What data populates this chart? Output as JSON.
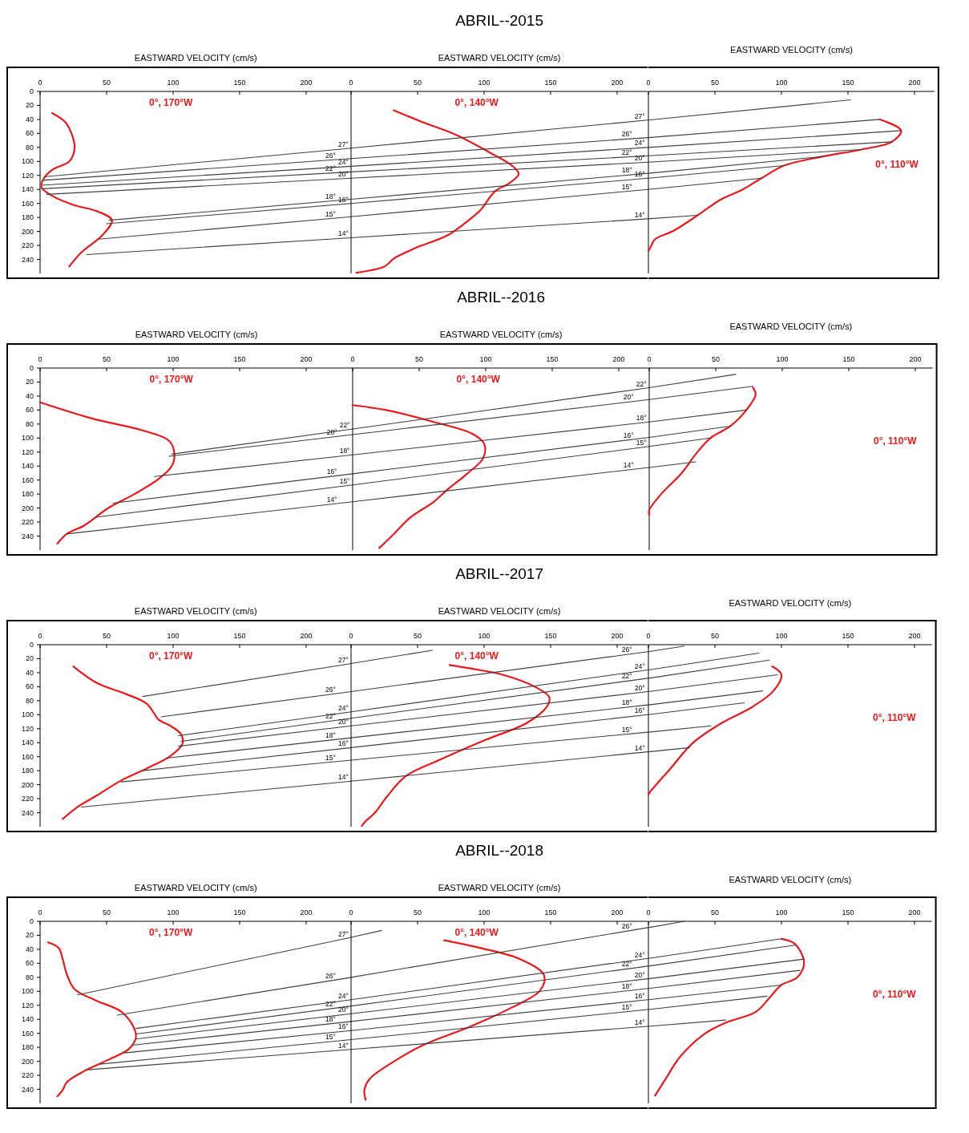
{
  "chart_data": [
    {
      "type": "line",
      "xlabel": "EASTWARD VELOCITY (cm/s)",
      "xlim": [
        0,
        234
      ],
      "xticks": [
        0,
        50,
        100,
        150,
        200
      ],
      "ylim": [
        260,
        0
      ],
      "yticks": [
        0,
        20,
        40,
        60,
        80,
        100,
        120,
        140,
        160,
        180,
        200,
        220,
        240
      ],
      "series": [
        {
          "name": "0°, 170°W",
          "color": "#e8191b",
          "x": [
            9,
            19,
            24,
            26,
            22,
            9,
            2,
            1,
            9,
            25,
            44,
            54,
            47,
            31,
            22
          ],
          "values": [
            31,
            44,
            62,
            81,
            100,
            112,
            127,
            137,
            149,
            162,
            172,
            184,
            205,
            230,
            250
          ]
        },
        {
          "name": "27°",
          "color": "#404040",
          "x": [
            3,
            234
          ],
          "values": [
            122,
            81
          ]
        },
        {
          "name": "26°",
          "color": "#404040",
          "x": [
            2,
            234
          ],
          "values": [
            127,
            96
          ]
        },
        {
          "name": "24°",
          "color": "#404040",
          "x": [
            1,
            234
          ],
          "values": [
            134,
            107
          ]
        },
        {
          "name": "22°",
          "color": "#404040",
          "x": [
            2,
            234
          ],
          "values": [
            139,
            115
          ]
        },
        {
          "name": "20°",
          "color": "#404040",
          "x": [
            5,
            234
          ],
          "values": [
            147,
            124
          ]
        },
        {
          "name": "18°",
          "color": "#404040",
          "x": [
            52,
            234
          ],
          "values": [
            184,
            154
          ]
        },
        {
          "name": "16°",
          "color": "#404040",
          "x": [
            50,
            234
          ],
          "values": [
            189,
            160
          ]
        },
        {
          "name": "15°",
          "color": "#404040",
          "x": [
            44,
            234
          ],
          "values": [
            211,
            179
          ]
        },
        {
          "name": "14°",
          "color": "#404040",
          "x": [
            35,
            234
          ],
          "values": [
            233,
            209
          ]
        }
      ]
    },
    {
      "type": "line",
      "title": "ABRIL--2015",
      "xlabel": "EASTWARD VELOCITY (cm/s)",
      "xlim": [
        0,
        223
      ],
      "xticks": [
        0,
        50,
        100,
        150,
        200
      ],
      "ylim": [
        260,
        0
      ],
      "yticks": [
        0,
        20,
        40,
        60,
        80,
        100,
        120,
        140,
        160,
        180,
        200,
        220,
        240
      ],
      "tick_labels": "x",
      "series": [
        {
          "name": "0°, 140°W",
          "color": "#e8191b",
          "x": [
            32,
            54,
            79,
            104,
            121,
            126,
            119,
            108,
            98,
            91,
            73,
            48,
            32,
            28,
            24,
            4
          ],
          "values": [
            27,
            44,
            62,
            87,
            106,
            118,
            131,
            143,
            168,
            180,
            205,
            224,
            239,
            246,
            251,
            259
          ]
        },
        {
          "name": "27°",
          "color": "#404040",
          "x": [
            0,
            223
          ],
          "values": [
            81,
            41
          ]
        },
        {
          "name": "26°",
          "color": "#404040",
          "x": [
            0,
            223
          ],
          "values": [
            96,
            66
          ]
        },
        {
          "name": "24°",
          "color": "#404040",
          "x": [
            0,
            223
          ],
          "values": [
            107,
            80
          ]
        },
        {
          "name": "22°",
          "color": "#404040",
          "x": [
            0,
            223
          ],
          "values": [
            115,
            92
          ]
        },
        {
          "name": "20°",
          "color": "#404040",
          "x": [
            0,
            223
          ],
          "values": [
            124,
            101
          ]
        },
        {
          "name": "18°",
          "color": "#404040",
          "x": [
            0,
            223
          ],
          "values": [
            154,
            117
          ]
        },
        {
          "name": "16°",
          "color": "#404040",
          "x": [
            0,
            223
          ],
          "values": [
            160,
            124
          ]
        },
        {
          "name": "15°",
          "color": "#404040",
          "x": [
            0,
            223
          ],
          "values": [
            179,
            140
          ]
        },
        {
          "name": "14°",
          "color": "#404040",
          "x": [
            0,
            223
          ],
          "values": [
            209,
            182
          ]
        }
      ]
    },
    {
      "type": "line",
      "xlabel": "EASTWARD VELOCITY (cm/s)",
      "xlim": [
        0,
        215
      ],
      "xticks": [
        0,
        50,
        100,
        150,
        200
      ],
      "ylim": [
        260,
        0
      ],
      "yticks": [
        0,
        20,
        40,
        60,
        80,
        100,
        120,
        140,
        160,
        180,
        200,
        220,
        240
      ],
      "tick_labels": "x",
      "series": [
        {
          "name": "0°, 110°W",
          "color": "#e8191b",
          "x": [
            174,
            190,
            183,
            160,
            131,
            102,
            85,
            71,
            54,
            37,
            19,
            5,
            2,
            0
          ],
          "values": [
            40,
            56,
            72,
            83,
            93,
            106,
            124,
            140,
            155,
            177,
            199,
            211,
            221,
            228
          ]
        },
        {
          "color": "#404040",
          "x": [
            0,
            152
          ],
          "values": [
            41,
            12
          ]
        },
        {
          "color": "#404040",
          "x": [
            0,
            174
          ],
          "values": [
            66,
            40
          ]
        },
        {
          "color": "#404040",
          "x": [
            0,
            190
          ],
          "values": [
            80,
            56
          ]
        },
        {
          "color": "#404040",
          "x": [
            0,
            183
          ],
          "values": [
            92,
            72
          ]
        },
        {
          "color": "#404040",
          "x": [
            0,
            160
          ],
          "values": [
            101,
            83
          ]
        },
        {
          "color": "#404040",
          "x": [
            0,
            131
          ],
          "values": [
            117,
            93
          ]
        },
        {
          "color": "#404040",
          "x": [
            0,
            102
          ],
          "values": [
            124,
            106
          ]
        },
        {
          "color": "#404040",
          "x": [
            0,
            85
          ],
          "values": [
            140,
            124
          ]
        },
        {
          "color": "#404040",
          "x": [
            0,
            37
          ],
          "values": [
            182,
            177
          ]
        }
      ]
    },
    {
      "type": "line",
      "xlabel": "EASTWARD VELOCITY (cm/s)",
      "xlim": [
        0,
        235
      ],
      "xticks": [
        0,
        50,
        100,
        150,
        200
      ],
      "ylim": [
        260,
        0
      ],
      "yticks": [
        0,
        20,
        40,
        60,
        80,
        100,
        120,
        140,
        160,
        180,
        200,
        220,
        240
      ],
      "series": [
        {
          "name": "0°, 170°W",
          "color": "#e8191b",
          "x": [
            0,
            39,
            77,
            97,
            101,
            99,
            90,
            71,
            52,
            33,
            20,
            13
          ],
          "values": [
            49,
            72,
            89,
            104,
            123,
            140,
            157,
            180,
            199,
            225,
            237,
            251
          ]
        },
        {
          "name": "22°",
          "color": "#404040",
          "x": [
            99,
            235
          ],
          "values": [
            123,
            87
          ]
        },
        {
          "name": "20°",
          "color": "#404040",
          "x": [
            97,
            235
          ],
          "values": [
            126,
            95
          ]
        },
        {
          "name": "18°",
          "color": "#404040",
          "x": [
            86,
            235
          ],
          "values": [
            155,
            124
          ]
        },
        {
          "name": "16°",
          "color": "#404040",
          "x": [
            55,
            235
          ],
          "values": [
            193,
            151
          ]
        },
        {
          "name": "15°",
          "color": "#404040",
          "x": [
            42,
            235
          ],
          "values": [
            213,
            167
          ]
        },
        {
          "name": "14°",
          "color": "#404040",
          "x": [
            20,
            235
          ],
          "values": [
            237,
            191
          ]
        }
      ]
    },
    {
      "type": "line",
      "title": "ABRIL--2016",
      "xlabel": "EASTWARD VELOCITY (cm/s)",
      "xlim": [
        0,
        223
      ],
      "xticks": [
        0,
        50,
        100,
        150,
        200
      ],
      "ylim": [
        260,
        0
      ],
      "yticks": [
        0,
        20,
        40,
        60,
        80,
        100,
        120,
        140,
        160,
        180,
        200,
        220,
        240
      ],
      "tick_labels": "x",
      "series": [
        {
          "name": "0°, 140°W",
          "color": "#e8191b",
          "x": [
            0,
            25,
            61,
            90,
            99,
            98,
            86,
            71,
            61,
            43,
            31,
            20
          ],
          "values": [
            53,
            60,
            77,
            94,
            109,
            129,
            151,
            174,
            191,
            214,
            237,
            257
          ]
        },
        {
          "name": "22°",
          "color": "#404040",
          "x": [
            0,
            223
          ],
          "values": [
            87,
            28
          ]
        },
        {
          "name": "20°",
          "color": "#404040",
          "x": [
            0,
            223
          ],
          "values": [
            95,
            45
          ]
        },
        {
          "name": "18°",
          "color": "#404040",
          "x": [
            0,
            223
          ],
          "values": [
            124,
            77
          ]
        },
        {
          "name": "16°",
          "color": "#404040",
          "x": [
            0,
            223
          ],
          "values": [
            151,
            99
          ]
        },
        {
          "name": "15°",
          "color": "#404040",
          "x": [
            0,
            223
          ],
          "values": [
            167,
            112
          ]
        },
        {
          "name": "14°",
          "color": "#404040",
          "x": [
            0,
            223
          ],
          "values": [
            191,
            142
          ]
        }
      ]
    },
    {
      "type": "line",
      "xlabel": "EASTWARD VELOCITY (cm/s)",
      "xlim": [
        0,
        213
      ],
      "xticks": [
        0,
        50,
        100,
        150,
        200
      ],
      "ylim": [
        260,
        0
      ],
      "yticks": [
        0,
        20,
        40,
        60,
        80,
        100,
        120,
        140,
        160,
        180,
        200,
        220,
        240
      ],
      "tick_labels": "x",
      "series": [
        {
          "name": "0°, 110°W",
          "color": "#e8191b",
          "x": [
            78,
            80,
            73,
            61,
            46,
            35,
            24,
            9,
            0,
            0
          ],
          "values": [
            28,
            38,
            60,
            83,
            100,
            123,
            151,
            180,
            203,
            210
          ]
        },
        {
          "color": "#404040",
          "x": [
            0,
            65
          ],
          "values": [
            28,
            9
          ]
        },
        {
          "color": "#404040",
          "x": [
            0,
            78
          ],
          "values": [
            45,
            26
          ]
        },
        {
          "color": "#404040",
          "x": [
            0,
            73
          ],
          "values": [
            77,
            60
          ]
        },
        {
          "color": "#404040",
          "x": [
            0,
            61
          ],
          "values": [
            99,
            83
          ]
        },
        {
          "color": "#404040",
          "x": [
            0,
            46
          ],
          "values": [
            112,
            100
          ]
        },
        {
          "color": "#404040",
          "x": [
            0,
            35
          ],
          "values": [
            142,
            134
          ]
        }
      ]
    },
    {
      "type": "line",
      "xlabel": "EASTWARD VELOCITY (cm/s)",
      "xlim": [
        0,
        234
      ],
      "xticks": [
        0,
        50,
        100,
        150,
        200
      ],
      "ylim": [
        260,
        0
      ],
      "yticks": [
        0,
        20,
        40,
        60,
        80,
        100,
        120,
        140,
        160,
        180,
        200,
        220,
        240
      ],
      "series": [
        {
          "name": "0°, 170°W",
          "color": "#e8191b",
          "x": [
            25,
            43,
            64,
            80,
            86,
            89,
            98,
            106,
            107,
            98,
            80,
            61,
            43,
            28,
            17
          ],
          "values": [
            31,
            55,
            70,
            84,
            99,
            107,
            116,
            128,
            142,
            159,
            177,
            194,
            215,
            232,
            249
          ]
        },
        {
          "name": "27°",
          "color": "#404040",
          "x": [
            77,
            234
          ],
          "values": [
            74,
            27
          ]
        },
        {
          "name": "26°",
          "color": "#404040",
          "x": [
            91,
            234
          ],
          "values": [
            103,
            67
          ]
        },
        {
          "name": "24°",
          "color": "#404040",
          "x": [
            104,
            234
          ],
          "values": [
            130,
            96
          ]
        },
        {
          "name": "22°",
          "color": "#404040",
          "x": [
            106,
            234
          ],
          "values": [
            138,
            105
          ]
        },
        {
          "name": "20°",
          "color": "#404040",
          "x": [
            104,
            234
          ],
          "values": [
            145,
            116
          ]
        },
        {
          "name": "18°",
          "color": "#404040",
          "x": [
            95,
            234
          ],
          "values": [
            162,
            133
          ]
        },
        {
          "name": "16°",
          "color": "#404040",
          "x": [
            77,
            234
          ],
          "values": [
            180,
            147
          ]
        },
        {
          "name": "15°",
          "color": "#404040",
          "x": [
            61,
            234
          ],
          "values": [
            196,
            165
          ]
        },
        {
          "name": "14°",
          "color": "#404040",
          "x": [
            31,
            234
          ],
          "values": [
            232,
            195
          ]
        }
      ]
    },
    {
      "type": "line",
      "title": "ABRIL--2017",
      "xlabel": "EASTWARD VELOCITY (cm/s)",
      "xlim": [
        0,
        223
      ],
      "xticks": [
        0,
        50,
        100,
        150,
        200
      ],
      "ylim": [
        260,
        0
      ],
      "yticks": [
        0,
        20,
        40,
        60,
        80,
        100,
        120,
        140,
        160,
        180,
        200,
        220,
        240
      ],
      "tick_labels": "x",
      "series": [
        {
          "name": "0°, 140°W",
          "color": "#e8191b",
          "x": [
            74,
            90,
            114,
            138,
            149,
            147,
            132,
            101,
            66,
            41,
            27,
            18,
            11,
            8
          ],
          "values": [
            29,
            34,
            43,
            60,
            75,
            89,
            112,
            136,
            165,
            188,
            217,
            240,
            252,
            259
          ]
        },
        {
          "color": "#404040",
          "x": [
            0,
            61
          ],
          "values": [
            27,
            8
          ]
        },
        {
          "name": "26°",
          "color": "#404040",
          "x": [
            0,
            223
          ],
          "values": [
            67,
            10
          ]
        },
        {
          "name": "24°",
          "color": "#404040",
          "x": [
            0,
            223
          ],
          "values": [
            96,
            36
          ]
        },
        {
          "name": "22°",
          "color": "#404040",
          "x": [
            0,
            223
          ],
          "values": [
            105,
            48
          ]
        },
        {
          "name": "20°",
          "color": "#404040",
          "x": [
            0,
            223
          ],
          "values": [
            116,
            67
          ]
        },
        {
          "name": "18°",
          "color": "#404040",
          "x": [
            0,
            223
          ],
          "values": [
            133,
            86
          ]
        },
        {
          "name": "16°",
          "color": "#404040",
          "x": [
            0,
            223
          ],
          "values": [
            147,
            100
          ]
        },
        {
          "name": "15°",
          "color": "#404040",
          "x": [
            0,
            223
          ],
          "values": [
            165,
            125
          ]
        },
        {
          "name": "14°",
          "color": "#404040",
          "x": [
            0,
            223
          ],
          "values": [
            195,
            153
          ]
        }
      ]
    },
    {
      "type": "line",
      "xlabel": "EASTWARD VELOCITY (cm/s)",
      "xlim": [
        0,
        213
      ],
      "xticks": [
        0,
        50,
        100,
        150,
        200
      ],
      "ylim": [
        260,
        0
      ],
      "yticks": [
        0,
        20,
        40,
        60,
        80,
        100,
        120,
        140,
        160,
        180,
        200,
        220,
        240
      ],
      "tick_labels": "x",
      "series": [
        {
          "name": "0°, 110°W",
          "color": "#e8191b",
          "x": [
            93,
            100,
            94,
            78,
            55,
            33,
            17,
            1,
            0
          ],
          "values": [
            31,
            43,
            66,
            89,
            112,
            141,
            176,
            211,
            214
          ]
        },
        {
          "color": "#404040",
          "x": [
            0,
            27
          ],
          "values": [
            10,
            2
          ]
        },
        {
          "color": "#404040",
          "x": [
            0,
            83
          ],
          "values": [
            36,
            12
          ]
        },
        {
          "color": "#404040",
          "x": [
            0,
            91
          ],
          "values": [
            48,
            22
          ]
        },
        {
          "color": "#404040",
          "x": [
            0,
            97
          ],
          "values": [
            67,
            43
          ]
        },
        {
          "color": "#404040",
          "x": [
            0,
            86
          ],
          "values": [
            86,
            66
          ]
        },
        {
          "color": "#404040",
          "x": [
            0,
            72
          ],
          "values": [
            100,
            83
          ]
        },
        {
          "color": "#404040",
          "x": [
            0,
            47
          ],
          "values": [
            125,
            116
          ]
        },
        {
          "color": "#404040",
          "x": [
            0,
            31
          ],
          "values": [
            153,
            147
          ]
        }
      ]
    },
    {
      "type": "line",
      "xlabel": "EASTWARD VELOCITY (cm/s)",
      "xlim": [
        0,
        234
      ],
      "xticks": [
        0,
        50,
        100,
        150,
        200
      ],
      "ylim": [
        260,
        0
      ],
      "yticks": [
        0,
        20,
        40,
        60,
        80,
        100,
        120,
        140,
        160,
        180,
        200,
        220,
        240
      ],
      "series": [
        {
          "name": "0°, 170°W",
          "color": "#e8191b",
          "x": [
            6,
            14,
            17,
            20,
            26,
            42,
            61,
            70,
            72,
            67,
            51,
            33,
            20,
            17,
            13
          ],
          "values": [
            30,
            38,
            54,
            75,
            97,
            113,
            129,
            150,
            166,
            182,
            198,
            214,
            230,
            241,
            250
          ]
        },
        {
          "name": "27°",
          "color": "#404040",
          "x": [
            28,
            234
          ],
          "values": [
            105,
            23
          ]
        },
        {
          "name": "26°",
          "color": "#404040",
          "x": [
            58,
            234
          ],
          "values": [
            134,
            80
          ]
        },
        {
          "name": "24°",
          "color": "#404040",
          "x": [
            72,
            234
          ],
          "values": [
            153,
            112
          ]
        },
        {
          "name": "22°",
          "color": "#404040",
          "x": [
            72,
            234
          ],
          "values": [
            161,
            121
          ]
        },
        {
          "name": "20°",
          "color": "#404040",
          "x": [
            72,
            234
          ],
          "values": [
            168,
            132
          ]
        },
        {
          "name": "18°",
          "color": "#404040",
          "x": [
            69,
            234
          ],
          "values": [
            177,
            143
          ]
        },
        {
          "name": "16°",
          "color": "#404040",
          "x": [
            63,
            234
          ],
          "values": [
            188,
            156
          ]
        },
        {
          "name": "15°",
          "color": "#404040",
          "x": [
            45,
            234
          ],
          "values": [
            204,
            169
          ]
        },
        {
          "name": "14°",
          "color": "#404040",
          "x": [
            36,
            234
          ],
          "values": [
            212,
            183
          ]
        }
      ]
    },
    {
      "type": "line",
      "title": "ABRIL--2018",
      "xlabel": "EASTWARD VELOCITY (cm/s)",
      "xlim": [
        0,
        223
      ],
      "xticks": [
        0,
        50,
        100,
        150,
        200
      ],
      "ylim": [
        260,
        0
      ],
      "yticks": [
        0,
        20,
        40,
        60,
        80,
        100,
        120,
        140,
        160,
        180,
        200,
        220,
        240
      ],
      "tick_labels": "x",
      "series": [
        {
          "name": "0°, 140°W",
          "color": "#e8191b",
          "x": [
            70,
            97,
            127,
            145,
            142,
            121,
            90,
            54,
            29,
            14,
            10,
            11
          ],
          "values": [
            27,
            38,
            54,
            77,
            99,
            123,
            150,
            177,
            204,
            225,
            241,
            255
          ]
        },
        {
          "color": "#404040",
          "x": [
            0,
            23
          ],
          "values": [
            23,
            13
          ]
        },
        {
          "name": "26°",
          "color": "#404040",
          "x": [
            0,
            223
          ],
          "values": [
            80,
            9
          ]
        },
        {
          "name": "24°",
          "color": "#404040",
          "x": [
            0,
            223
          ],
          "values": [
            112,
            53
          ]
        },
        {
          "name": "22°",
          "color": "#404040",
          "x": [
            0,
            223
          ],
          "values": [
            121,
            64
          ]
        },
        {
          "name": "20°",
          "color": "#404040",
          "x": [
            0,
            223
          ],
          "values": [
            132,
            82
          ]
        },
        {
          "name": "18°",
          "color": "#404040",
          "x": [
            0,
            223
          ],
          "values": [
            143,
            96
          ]
        },
        {
          "name": "16°",
          "color": "#404040",
          "x": [
            0,
            223
          ],
          "values": [
            156,
            112
          ]
        },
        {
          "name": "15°",
          "color": "#404040",
          "x": [
            0,
            223
          ],
          "values": [
            169,
            126
          ]
        },
        {
          "name": "14°",
          "color": "#404040",
          "x": [
            0,
            223
          ],
          "values": [
            183,
            150
          ]
        }
      ]
    },
    {
      "type": "line",
      "xlabel": "EASTWARD VELOCITY (cm/s)",
      "xlim": [
        0,
        213
      ],
      "xticks": [
        0,
        50,
        100,
        150,
        200
      ],
      "ylim": [
        260,
        0
      ],
      "yticks": [
        0,
        20,
        40,
        60,
        80,
        100,
        120,
        140,
        160,
        180,
        200,
        220,
        240
      ],
      "tick_labels": "x",
      "series": [
        {
          "name": "0°, 110°W",
          "color": "#e8191b",
          "x": [
            100,
            110,
            117,
            112,
            100,
            92,
            81,
            58,
            42,
            24,
            13,
            5
          ],
          "values": [
            25,
            32,
            59,
            80,
            91,
            107,
            129,
            145,
            161,
            193,
            225,
            249
          ]
        },
        {
          "color": "#404040",
          "x": [
            0,
            27
          ],
          "values": [
            9,
            0
          ]
        },
        {
          "color": "#404040",
          "x": [
            0,
            100
          ],
          "values": [
            53,
            25
          ]
        },
        {
          "color": "#404040",
          "x": [
            0,
            110
          ],
          "values": [
            64,
            34
          ]
        },
        {
          "color": "#404040",
          "x": [
            0,
            117
          ],
          "values": [
            82,
            54
          ]
        },
        {
          "color": "#404040",
          "x": [
            0,
            114
          ],
          "values": [
            96,
            70
          ]
        },
        {
          "color": "#404040",
          "x": [
            0,
            100
          ],
          "values": [
            112,
            91
          ]
        },
        {
          "color": "#404040",
          "x": [
            0,
            89
          ],
          "values": [
            126,
            107
          ]
        },
        {
          "color": "#404040",
          "x": [
            0,
            58
          ],
          "values": [
            150,
            141
          ]
        }
      ]
    }
  ]
}
